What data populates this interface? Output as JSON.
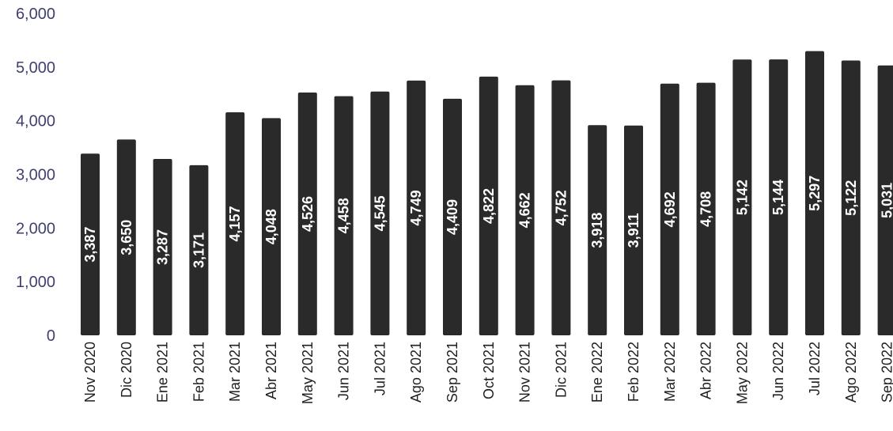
{
  "chart_data": {
    "type": "bar",
    "categories": [
      "Nov 2020",
      "Dic 2020",
      "Ene 2021",
      "Feb 2021",
      "Mar 2021",
      "Abr 2021",
      "May 2021",
      "Jun 2021",
      "Jul 2021",
      "Ago 2021",
      "Sep 2021",
      "Oct 2021",
      "Nov 2021",
      "Dic 2021",
      "Ene 2022",
      "Feb 2022",
      "Mar 2022",
      "Abr 2022",
      "May 2022",
      "Jun 2022",
      "Jul 2022",
      "Ago 2022",
      "Sep 2022"
    ],
    "values": [
      3387,
      3650,
      3287,
      3171,
      4157,
      4048,
      4526,
      4458,
      4545,
      4749,
      4409,
      4822,
      4662,
      4752,
      3918,
      3911,
      4692,
      4708,
      5142,
      5144,
      5297,
      5122,
      5031
    ],
    "value_labels": [
      "3,387",
      "3,650",
      "3,287",
      "3,171",
      "4,157",
      "4,048",
      "4,526",
      "4,458",
      "4,545",
      "4,749",
      "4,409",
      "4,822",
      "4,662",
      "4,752",
      "3,918",
      "3,911",
      "4,692",
      "4,708",
      "5,142",
      "5,144",
      "5,297",
      "5,122",
      "5,031"
    ],
    "y_ticks": [
      "0",
      "1,000",
      "2,000",
      "3,000",
      "4,000",
      "5,000",
      "6,000"
    ],
    "ylim": [
      0,
      6000
    ],
    "grid": false,
    "legend": "none",
    "title": "",
    "xlabel": "",
    "ylabel": "",
    "colors": {
      "bar": "#2a2a2a",
      "value_label": "#ffffff",
      "y_tick": "#3f3f70",
      "x_tick": "#1f1f1f"
    }
  }
}
